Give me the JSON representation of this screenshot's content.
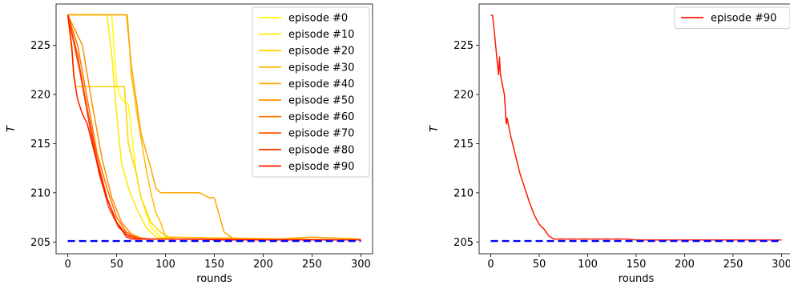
{
  "chart_data": [
    {
      "type": "line",
      "xlabel": "rounds",
      "ylabel": "T",
      "xlim": [
        -12,
        312
      ],
      "ylim": [
        203.8,
        229.2
      ],
      "xticks": [
        0,
        50,
        100,
        150,
        200,
        250,
        300
      ],
      "yticks": [
        205,
        210,
        215,
        220,
        225
      ],
      "grid": false,
      "legend_position": "top-right",
      "reference_line": {
        "y": 205.1,
        "color": "#0000ff",
        "style": "dashed"
      },
      "series": [
        {
          "name": "episode #0",
          "color": "#ffff00",
          "x": [
            0,
            45,
            50,
            55,
            62,
            70,
            75,
            85,
            95,
            110,
            300
          ],
          "y": [
            228.1,
            228.1,
            221,
            219.5,
            219,
            212,
            209.5,
            206.5,
            205.5,
            205.3,
            205.2
          ]
        },
        {
          "name": "episode #10",
          "color": "#ffe800",
          "x": [
            0,
            40,
            45,
            50,
            55,
            62,
            70,
            80,
            90,
            100,
            300
          ],
          "y": [
            228.1,
            228.1,
            224,
            218,
            213,
            210.5,
            208.5,
            206.5,
            205.5,
            205.3,
            205.2
          ]
        },
        {
          "name": "episode #20",
          "color": "#ffd200",
          "x": [
            0,
            8,
            58,
            62,
            70,
            75,
            85,
            95,
            105,
            110,
            300
          ],
          "y": [
            228.1,
            220.8,
            220.8,
            215,
            212,
            209.5,
            207,
            206,
            205.4,
            205.3,
            205.2
          ]
        },
        {
          "name": "episode #30",
          "color": "#ffbc00",
          "x": [
            0,
            61,
            65,
            70,
            75,
            80,
            85,
            90,
            95,
            100,
            300
          ],
          "y": [
            228.1,
            228.1,
            222,
            218.5,
            215.5,
            212.5,
            210,
            208,
            207,
            205.5,
            205.2
          ]
        },
        {
          "name": "episode #40",
          "color": "#ffa600",
          "x": [
            0,
            60,
            65,
            75,
            85,
            90,
            95,
            135,
            145,
            150,
            160,
            170,
            200,
            250,
            300
          ],
          "y": [
            228.1,
            228.1,
            223,
            216,
            212.5,
            210.5,
            210,
            210,
            209.5,
            209.5,
            206,
            205.3,
            205.2,
            205.5,
            205.3
          ]
        },
        {
          "name": "episode #50",
          "color": "#ff8f00",
          "x": [
            0,
            15,
            25,
            35,
            45,
            55,
            65,
            75,
            85,
            300
          ],
          "y": [
            228.1,
            225,
            219,
            213.5,
            209.5,
            207,
            205.8,
            205.4,
            205.3,
            205.2
          ]
        },
        {
          "name": "episode #60",
          "color": "#ff7400",
          "x": [
            0,
            10,
            20,
            30,
            40,
            50,
            60,
            70,
            80,
            300
          ],
          "y": [
            228.1,
            225,
            219.5,
            214,
            210.5,
            207.5,
            206,
            205.5,
            205.3,
            205.2
          ]
        },
        {
          "name": "episode #70",
          "color": "#ff5a00",
          "x": [
            0,
            10,
            20,
            30,
            40,
            50,
            60,
            70,
            80,
            300
          ],
          "y": [
            228.1,
            224,
            218.5,
            213.5,
            209.5,
            207,
            205.8,
            205.4,
            205.3,
            205.2
          ]
        },
        {
          "name": "episode #80",
          "color": "#ff3c00",
          "x": [
            0,
            12,
            22,
            32,
            42,
            52,
            62,
            72,
            82,
            300
          ],
          "y": [
            228.1,
            222.5,
            217,
            212,
            208.5,
            206.5,
            205.6,
            205.3,
            205.3,
            205.2
          ]
        },
        {
          "name": "episode #90",
          "color": "#ff1800",
          "x": [
            0,
            4,
            6,
            10,
            15,
            20,
            25,
            30,
            40,
            50,
            60,
            65,
            80,
            140,
            150,
            300
          ],
          "y": [
            228.1,
            225,
            222,
            219.5,
            218,
            217,
            215,
            213,
            209.5,
            207,
            205.5,
            205.3,
            205.3,
            205.3,
            205.2,
            205.2
          ]
        }
      ]
    },
    {
      "type": "line",
      "xlabel": "rounds",
      "ylabel": "T",
      "xlim": [
        -12,
        312
      ],
      "ylim": [
        203.8,
        229.2
      ],
      "xticks": [
        0,
        50,
        100,
        150,
        200,
        250,
        300
      ],
      "yticks": [
        205,
        210,
        215,
        220,
        225
      ],
      "grid": false,
      "legend_position": "top-right",
      "reference_line": {
        "y": 205.1,
        "color": "#0000ff",
        "style": "dashed"
      },
      "series": [
        {
          "name": "episode #90",
          "color": "#ff1800",
          "x": [
            0,
            2,
            4,
            6,
            8,
            9,
            10,
            12,
            14,
            16,
            17,
            18,
            20,
            25,
            30,
            35,
            40,
            45,
            50,
            55,
            60,
            65,
            80,
            140,
            150,
            300
          ],
          "y": [
            228.1,
            228,
            226,
            224,
            222,
            223.8,
            222,
            221,
            220,
            217,
            217.6,
            217,
            216,
            214,
            212,
            210.5,
            209,
            207.7,
            206.8,
            206.3,
            205.6,
            205.3,
            205.3,
            205.3,
            205.2,
            205.2
          ]
        }
      ]
    }
  ]
}
